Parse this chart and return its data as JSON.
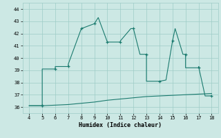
{
  "xlabel": "Humidex (Indice chaleur)",
  "line_color": "#1a7a6e",
  "bg_color": "#cce8e4",
  "grid_color": "#9eccc7",
  "xlim": [
    3.5,
    18.5
  ],
  "ylim": [
    35.5,
    44.5
  ],
  "xticks": [
    4,
    5,
    6,
    7,
    8,
    9,
    10,
    11,
    12,
    13,
    14,
    15,
    16,
    17,
    18
  ],
  "yticks": [
    36,
    37,
    38,
    39,
    40,
    41,
    42,
    43,
    44
  ],
  "x_main": [
    4,
    5,
    5,
    6,
    6,
    7,
    7,
    8,
    8,
    9,
    9.3,
    10,
    10,
    11,
    11,
    11.8,
    12,
    12.5,
    13,
    13,
    14,
    14,
    14.5,
    15,
    15.2,
    15.8,
    16,
    16,
    17,
    17,
    17.5,
    18
  ],
  "y_main": [
    36.1,
    36.1,
    39.1,
    39.1,
    39.3,
    39.3,
    39.5,
    42.4,
    42.4,
    42.8,
    43.3,
    41.3,
    41.3,
    41.3,
    41.4,
    42.4,
    42.4,
    40.3,
    40.3,
    38.1,
    38.1,
    38.1,
    38.2,
    41.4,
    42.4,
    40.3,
    40.3,
    39.2,
    39.2,
    39.3,
    36.9,
    36.9
  ],
  "x_sec": [
    4,
    5,
    6,
    7,
    8,
    9,
    10,
    11,
    12,
    13,
    14,
    15,
    16,
    17,
    18
  ],
  "y_sec": [
    36.1,
    36.1,
    36.15,
    36.2,
    36.3,
    36.4,
    36.55,
    36.65,
    36.75,
    36.85,
    36.9,
    36.95,
    37.0,
    37.05,
    37.1
  ],
  "marker_main_x": [
    5,
    6,
    7,
    8,
    9,
    10,
    11,
    12,
    13,
    14,
    15,
    16,
    17,
    18
  ],
  "marker_main_y": [
    36.1,
    39.1,
    39.3,
    42.4,
    42.8,
    41.3,
    41.3,
    42.4,
    40.3,
    38.1,
    41.4,
    40.3,
    39.2,
    36.9
  ],
  "marker_sec_x": [
    5
  ],
  "marker_sec_y": [
    36.1
  ]
}
